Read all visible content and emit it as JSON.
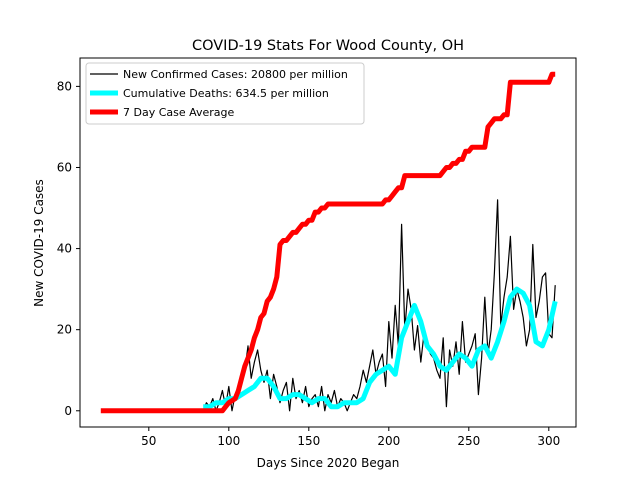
{
  "chart_data": {
    "type": "line",
    "title": "COVID-19 Stats For Wood County, OH",
    "xlabel": "Days Since 2020 Began",
    "ylabel": "New COVID-19 Cases",
    "xlim": [
      7,
      317
    ],
    "ylim": [
      -4,
      87
    ],
    "xticks": [
      50,
      100,
      150,
      200,
      250,
      300
    ],
    "yticks": [
      0,
      20,
      40,
      60,
      80
    ],
    "grid": false,
    "legend_position": "top-left",
    "series": [
      {
        "name": "New Confirmed Cases: 20800 per million",
        "color": "#000000",
        "style": "thin",
        "x": [
          84,
          86,
          88,
          90,
          92,
          94,
          96,
          98,
          100,
          102,
          104,
          106,
          108,
          110,
          112,
          114,
          116,
          118,
          120,
          122,
          124,
          126,
          128,
          130,
          132,
          134,
          136,
          138,
          140,
          142,
          144,
          146,
          148,
          150,
          152,
          154,
          156,
          158,
          160,
          162,
          164,
          166,
          168,
          170,
          172,
          174,
          176,
          178,
          180,
          182,
          184,
          186,
          188,
          190,
          192,
          194,
          196,
          198,
          200,
          202,
          204,
          206,
          208,
          210,
          212,
          214,
          216,
          218,
          220,
          222,
          224,
          226,
          228,
          230,
          232,
          234,
          236,
          238,
          240,
          242,
          244,
          246,
          248,
          250,
          252,
          254,
          256,
          258,
          260,
          262,
          264,
          266,
          268,
          270,
          272,
          274,
          276,
          278,
          280,
          282,
          284,
          286,
          288,
          290,
          292,
          294,
          296,
          298,
          300,
          302,
          304
        ],
        "y": [
          0,
          2,
          1,
          3,
          0,
          2,
          5,
          1,
          6,
          0,
          4,
          3,
          7,
          10,
          16,
          8,
          12,
          15,
          10,
          7,
          10,
          3,
          9,
          6,
          2,
          5,
          7,
          0,
          8,
          3,
          5,
          2,
          6,
          1,
          3,
          4,
          1,
          6,
          0,
          4,
          2,
          5,
          1,
          3,
          2,
          0,
          2,
          4,
          3,
          6,
          10,
          7,
          11,
          15,
          9,
          12,
          14,
          6,
          22,
          13,
          26,
          16,
          46,
          20,
          30,
          25,
          15,
          21,
          12,
          19,
          17,
          14,
          13,
          10,
          8,
          18,
          1,
          15,
          11,
          17,
          9,
          22,
          12,
          14,
          16,
          19,
          4,
          13,
          28,
          14,
          20,
          34,
          52,
          21,
          28,
          33,
          43,
          25,
          30,
          27,
          23,
          16,
          20,
          41,
          23,
          27,
          33,
          34,
          19,
          18,
          31
        ]
      },
      {
        "name": "Cumulative Deaths: 634.5 per million",
        "color": "#00ffff",
        "style": "thick",
        "x": [
          84,
          88,
          92,
          96,
          100,
          104,
          108,
          112,
          116,
          120,
          124,
          128,
          132,
          136,
          140,
          144,
          148,
          152,
          156,
          160,
          164,
          168,
          172,
          176,
          180,
          184,
          188,
          192,
          196,
          200,
          204,
          208,
          212,
          216,
          220,
          224,
          228,
          232,
          236,
          240,
          244,
          248,
          252,
          256,
          260,
          264,
          268,
          272,
          276,
          280,
          284,
          288,
          292,
          296,
          300,
          304
        ],
        "y": [
          1,
          1,
          2,
          2,
          3,
          3,
          4,
          5,
          6,
          8,
          8,
          6,
          3,
          3,
          4,
          4,
          3,
          2,
          3,
          3,
          1,
          1,
          2,
          2,
          2,
          3,
          7,
          9,
          10,
          11,
          9,
          18,
          22,
          26,
          22,
          16,
          14,
          11,
          10,
          12,
          14,
          13,
          11,
          15,
          16,
          13,
          17,
          22,
          28,
          30,
          29,
          26,
          17,
          16,
          20,
          27
        ]
      },
      {
        "name": "7 Day Case Average",
        "color": "#ff0000",
        "style": "thick",
        "x": [
          20,
          96,
          98,
          100,
          104,
          106,
          108,
          110,
          112,
          114,
          116,
          118,
          120,
          122,
          124,
          126,
          128,
          130,
          132,
          134,
          136,
          138,
          140,
          142,
          144,
          146,
          148,
          150,
          152,
          154,
          156,
          158,
          160,
          162,
          164,
          166,
          168,
          170,
          172,
          174,
          176,
          178,
          180,
          182,
          184,
          186,
          188,
          190,
          192,
          194,
          196,
          198,
          200,
          202,
          204,
          206,
          208,
          210,
          212,
          214,
          216,
          218,
          220,
          222,
          224,
          226,
          228,
          230,
          232,
          234,
          236,
          238,
          240,
          242,
          244,
          246,
          248,
          250,
          252,
          254,
          256,
          258,
          260,
          262,
          264,
          266,
          268,
          270,
          272,
          274,
          276,
          278,
          280,
          282,
          284,
          286,
          288,
          290,
          292,
          294,
          296,
          298,
          300,
          302,
          304
        ],
        "y": [
          0,
          0,
          1,
          2,
          3,
          5,
          8,
          11,
          13,
          15,
          18,
          20,
          23,
          24,
          27,
          28,
          30,
          33,
          41,
          42,
          42,
          43,
          44,
          44,
          45,
          46,
          46,
          47,
          47,
          49,
          49,
          50,
          50,
          51,
          51,
          51,
          51,
          51,
          51,
          51,
          51,
          51,
          51,
          51,
          51,
          51,
          51,
          51,
          51,
          51,
          51,
          52,
          52,
          53,
          54,
          55,
          55,
          58,
          58,
          58,
          58,
          58,
          58,
          58,
          58,
          58,
          58,
          58,
          58,
          59,
          60,
          60,
          61,
          61,
          62,
          62,
          64,
          64,
          65,
          65,
          65,
          65,
          65,
          70,
          71,
          72,
          72,
          72,
          73,
          73,
          81,
          81,
          81,
          81,
          81,
          81,
          81,
          81,
          81,
          81,
          81,
          81,
          81,
          83,
          83
        ]
      }
    ]
  }
}
